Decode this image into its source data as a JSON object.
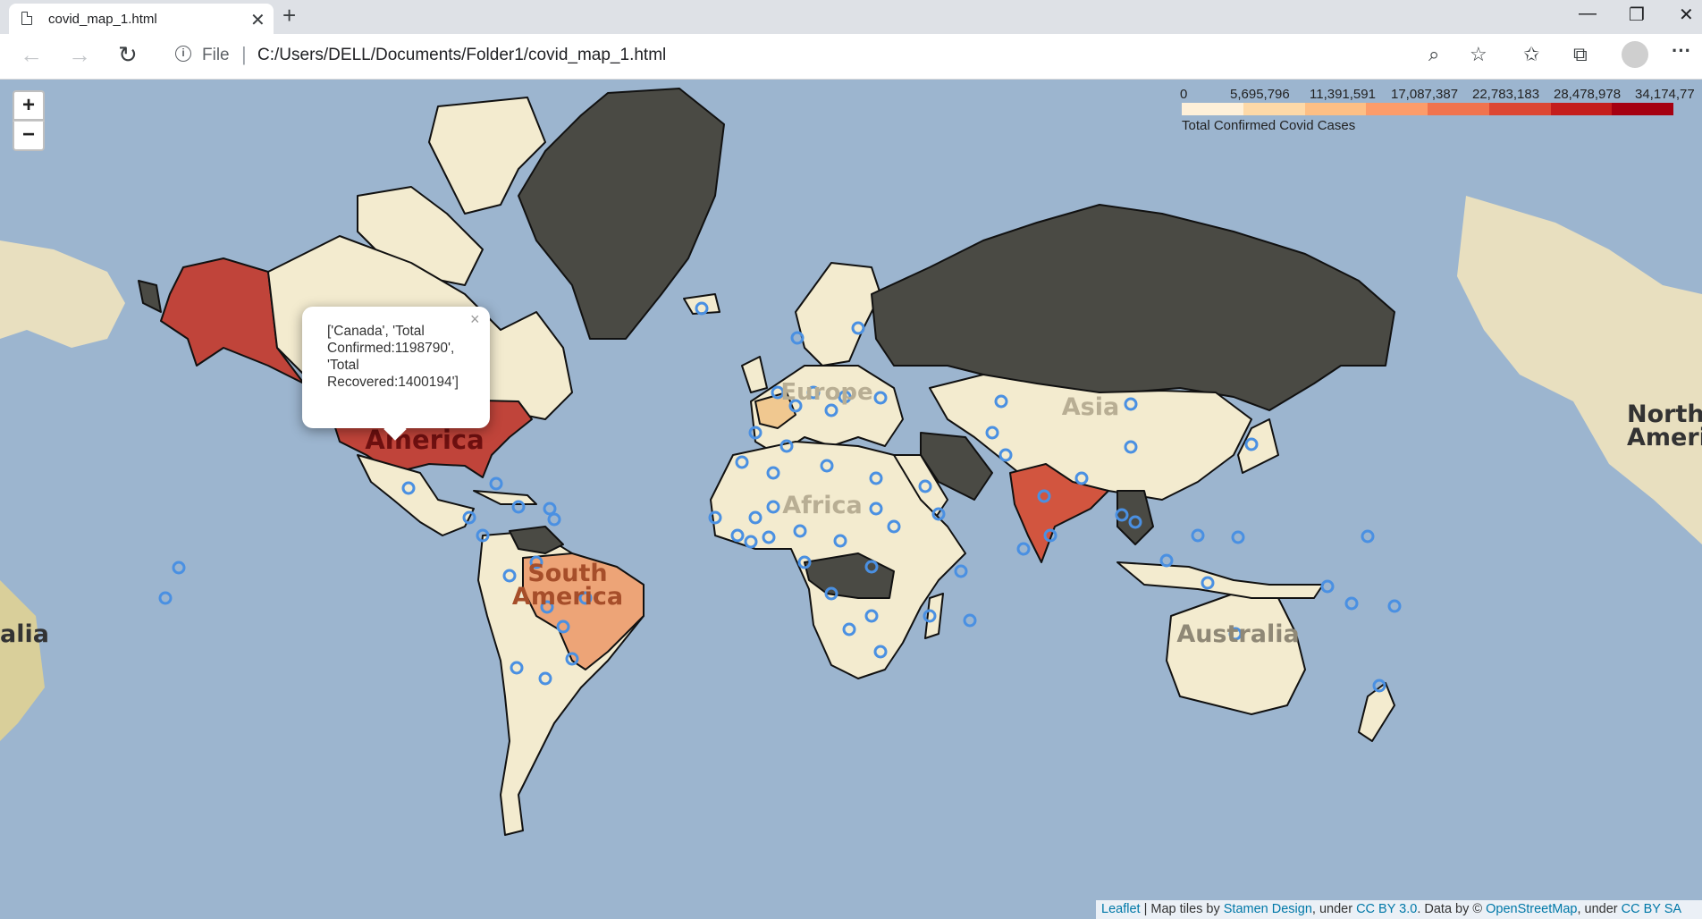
{
  "browser": {
    "tab_title": "covid_map_1.html",
    "tab_close": "✕",
    "new_tab": "+",
    "win_min": "—",
    "win_max": "❐",
    "win_close": "✕",
    "nav_back": "←",
    "nav_forward": "→",
    "nav_reload": "↻",
    "info_glyph": "i",
    "addr_scheme": "File",
    "addr_sep": "|",
    "url": "C:/Users/DELL/Documents/Folder1/covid_map_1.html",
    "zoom_glyph": "⌕",
    "star_glyph": "☆",
    "favorites_glyph": "✩",
    "collections_glyph": "⧉",
    "more_glyph": "···"
  },
  "map": {
    "zoom_in": "+",
    "zoom_out": "−",
    "legend": {
      "ticks": [
        "0",
        "5,695,796",
        "11,391,591",
        "17,087,387",
        "22,783,183",
        "28,478,978",
        "34,174,77"
      ],
      "caption": "Total Confirmed Covid Cases",
      "colors": [
        "#fef0d9",
        "#fdd9a8",
        "#fdbf85",
        "#fc9c6a",
        "#f0734e",
        "#dc4633",
        "#c41d1c",
        "#a50011"
      ]
    },
    "popup": {
      "text": "['Canada', 'Total Confirmed:1198790', 'Total Recovered:1400194']",
      "close": "×"
    },
    "labels": {
      "north_america": "North America",
      "south_america": "South America",
      "europe": "Europe",
      "africa": "Africa",
      "asia": "Asia",
      "australia": "Australia",
      "north_america_right": "North Ameri",
      "australia_left": "alia"
    },
    "attribution": {
      "leaflet": "Leaflet",
      "t1": " | Map tiles by ",
      "stamen": "Stamen Design",
      "t2": ", under ",
      "ccby": "CC BY 3.0",
      "t3": ". Data by © ",
      "osm": "OpenStreetMap",
      "t4": ", under ",
      "ccbysa": "CC BY SA"
    },
    "colors": {
      "ocean": "#9cb5cf",
      "land_light": "#f3ebcf",
      "land_dark": "#4a4a44",
      "usa": "#c0443a",
      "india": "#d2553f",
      "brazil": "#eda477",
      "marker": "#4a90e2"
    }
  }
}
